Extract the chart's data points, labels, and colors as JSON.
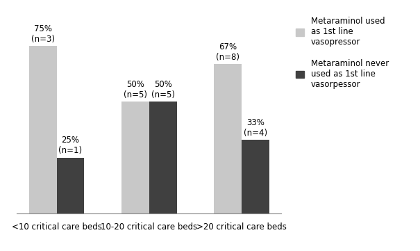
{
  "categories": [
    "<10 critical care beds",
    "10-20 critical care beds",
    ">20 critical care beds"
  ],
  "series1_label": "Metaraminol used\nas 1st line\nvasopressor",
  "series2_label": "Metaraminol never\nused as 1st line\nvasorpessor",
  "series1_values": [
    75,
    50,
    67
  ],
  "series2_values": [
    25,
    50,
    33
  ],
  "series1_ns": [
    "n=3",
    "n=5",
    "n=8"
  ],
  "series2_ns": [
    "n=1",
    "n=5",
    "n=4"
  ],
  "series1_pcts": [
    "75%",
    "50%",
    "67%"
  ],
  "series2_pcts": [
    "25%",
    "50%",
    "33%"
  ],
  "color_light": "#c8c8c8",
  "color_dark": "#404040",
  "bar_width": 0.3,
  "ylim": [
    0,
    90
  ],
  "background_color": "#ffffff",
  "label_fontsize": 8.5,
  "tick_fontsize": 8.5,
  "legend_fontsize": 8.5,
  "fig_width": 6.05,
  "fig_height": 3.61
}
